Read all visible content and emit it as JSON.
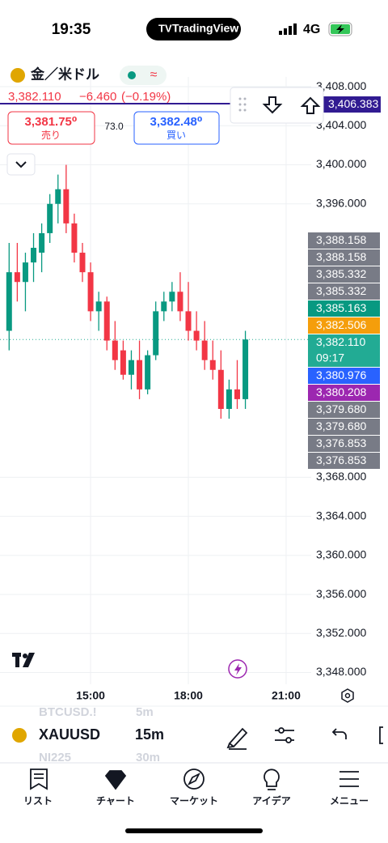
{
  "status_bar": {
    "time": "19:35",
    "app": "TradingView",
    "network": "4G"
  },
  "header": {
    "symbol_name": "金／米ドル",
    "last_price": "3,382.110",
    "change": "−6.460",
    "change_percent": "(−0.19%)",
    "sell_price": "3,381.75⁰",
    "sell_label": "売り",
    "spread": "73.0",
    "buy_price": "3,382.48⁰",
    "buy_label": "買い"
  },
  "chart_data": {
    "type": "candlestick",
    "up_color": "#089981",
    "down_color": "#f23645",
    "grid": true,
    "xlim": [
      12.22,
      21.77
    ],
    "xticks": [
      {
        "value": 15,
        "label": "15:00"
      },
      {
        "value": 18,
        "label": "18:00"
      },
      {
        "value": 21,
        "label": "21:00"
      }
    ],
    "ylim": [
      3346.8,
      3409
    ],
    "yticks": [
      {
        "value": 3408,
        "label": "3,408.000"
      },
      {
        "value": 3404,
        "label": "3,404.000"
      },
      {
        "value": 3400,
        "label": "3,400.000"
      },
      {
        "value": 3396,
        "label": "3,396.000"
      },
      {
        "value": 3368,
        "label": "3,368.000"
      },
      {
        "value": 3364,
        "label": "3,364.000"
      },
      {
        "value": 3360,
        "label": "3,360.000"
      },
      {
        "value": 3356,
        "label": "3,356.000"
      },
      {
        "value": 3352,
        "label": "3,352.000"
      },
      {
        "value": 3348,
        "label": "3,348.000"
      }
    ],
    "x": [
      12.5,
      12.75,
      13,
      13.25,
      13.5,
      13.75,
      14,
      14.25,
      14.5,
      14.75,
      15,
      15.25,
      15.5,
      15.75,
      16,
      16.25,
      16.5,
      16.75,
      17,
      17.25,
      17.5,
      17.75,
      18,
      18.25,
      18.5,
      18.75,
      19,
      19.25,
      19.5,
      19.75
    ],
    "open": [
      3383,
      3389,
      3388,
      3390,
      3391,
      3393,
      3396,
      3397.5,
      3394,
      3391,
      3389,
      3385,
      3386,
      3382,
      3381,
      3378.5,
      3380,
      3377,
      3380.5,
      3385,
      3386,
      3387,
      3385,
      3383,
      3382,
      3380,
      3379,
      3375,
      3377,
      3376
    ],
    "high": [
      3392,
      3392,
      3391,
      3393,
      3394,
      3397,
      3399,
      3400,
      3395,
      3392,
      3390,
      3387,
      3386.5,
      3384,
      3382,
      3381,
      3382,
      3381,
      3386,
      3387,
      3388,
      3389,
      3388,
      3385,
      3384,
      3382,
      3381,
      3378,
      3380,
      3383
    ],
    "low": [
      3381,
      3386,
      3385,
      3388,
      3389,
      3392,
      3394,
      3393,
      3390,
      3388,
      3384,
      3383,
      3381,
      3379,
      3378,
      3377,
      3376,
      3376.5,
      3380,
      3384,
      3385,
      3384,
      3382,
      3381,
      3379,
      3378,
      3374,
      3374,
      3375,
      3375
    ],
    "close": [
      3389,
      3388,
      3390,
      3391.5,
      3393,
      3396,
      3397.5,
      3394,
      3391,
      3389,
      3385,
      3386,
      3382,
      3380,
      3378.5,
      3380,
      3377,
      3380.5,
      3385,
      3386,
      3387,
      3385,
      3383,
      3382,
      3380,
      3379,
      3375,
      3377,
      3376,
      3382.11
    ],
    "top_label": {
      "label": "3,406.383",
      "color": "#311b92"
    },
    "price_labels": [
      {
        "label": "3,388.158",
        "color": "#787b86"
      },
      {
        "label": "3,388.158",
        "color": "#787b86"
      },
      {
        "label": "3,385.332",
        "color": "#787b86"
      },
      {
        "label": "3,385.332",
        "color": "#787b86"
      },
      {
        "label": "3,385.163",
        "color": "#089981"
      },
      {
        "label": "3,382.506",
        "color": "#f59e0b"
      },
      {
        "label": "3,382.110",
        "sub": "09:17",
        "color": "#22ab94"
      },
      {
        "label": "3,380.976",
        "color": "#2962ff"
      },
      {
        "label": "3,380.208",
        "color": "#9c27b0"
      },
      {
        "label": "3,379.680",
        "color": "#787b86"
      },
      {
        "label": "3,379.680",
        "color": "#787b86"
      },
      {
        "label": "3,376.853",
        "color": "#787b86"
      },
      {
        "label": "3,376.853",
        "color": "#787b86"
      }
    ]
  },
  "bottom_bar": {
    "symbol": "XAUUSD",
    "interval": "15m",
    "ghost_symbol_above": "BTCUSD.!",
    "ghost_interval_above": "5m",
    "ghost_symbol_below": "NI225",
    "ghost_interval_below": "30m"
  },
  "nav": [
    "リスト",
    "チャート",
    "マーケット",
    "アイデア",
    "メニュー"
  ]
}
